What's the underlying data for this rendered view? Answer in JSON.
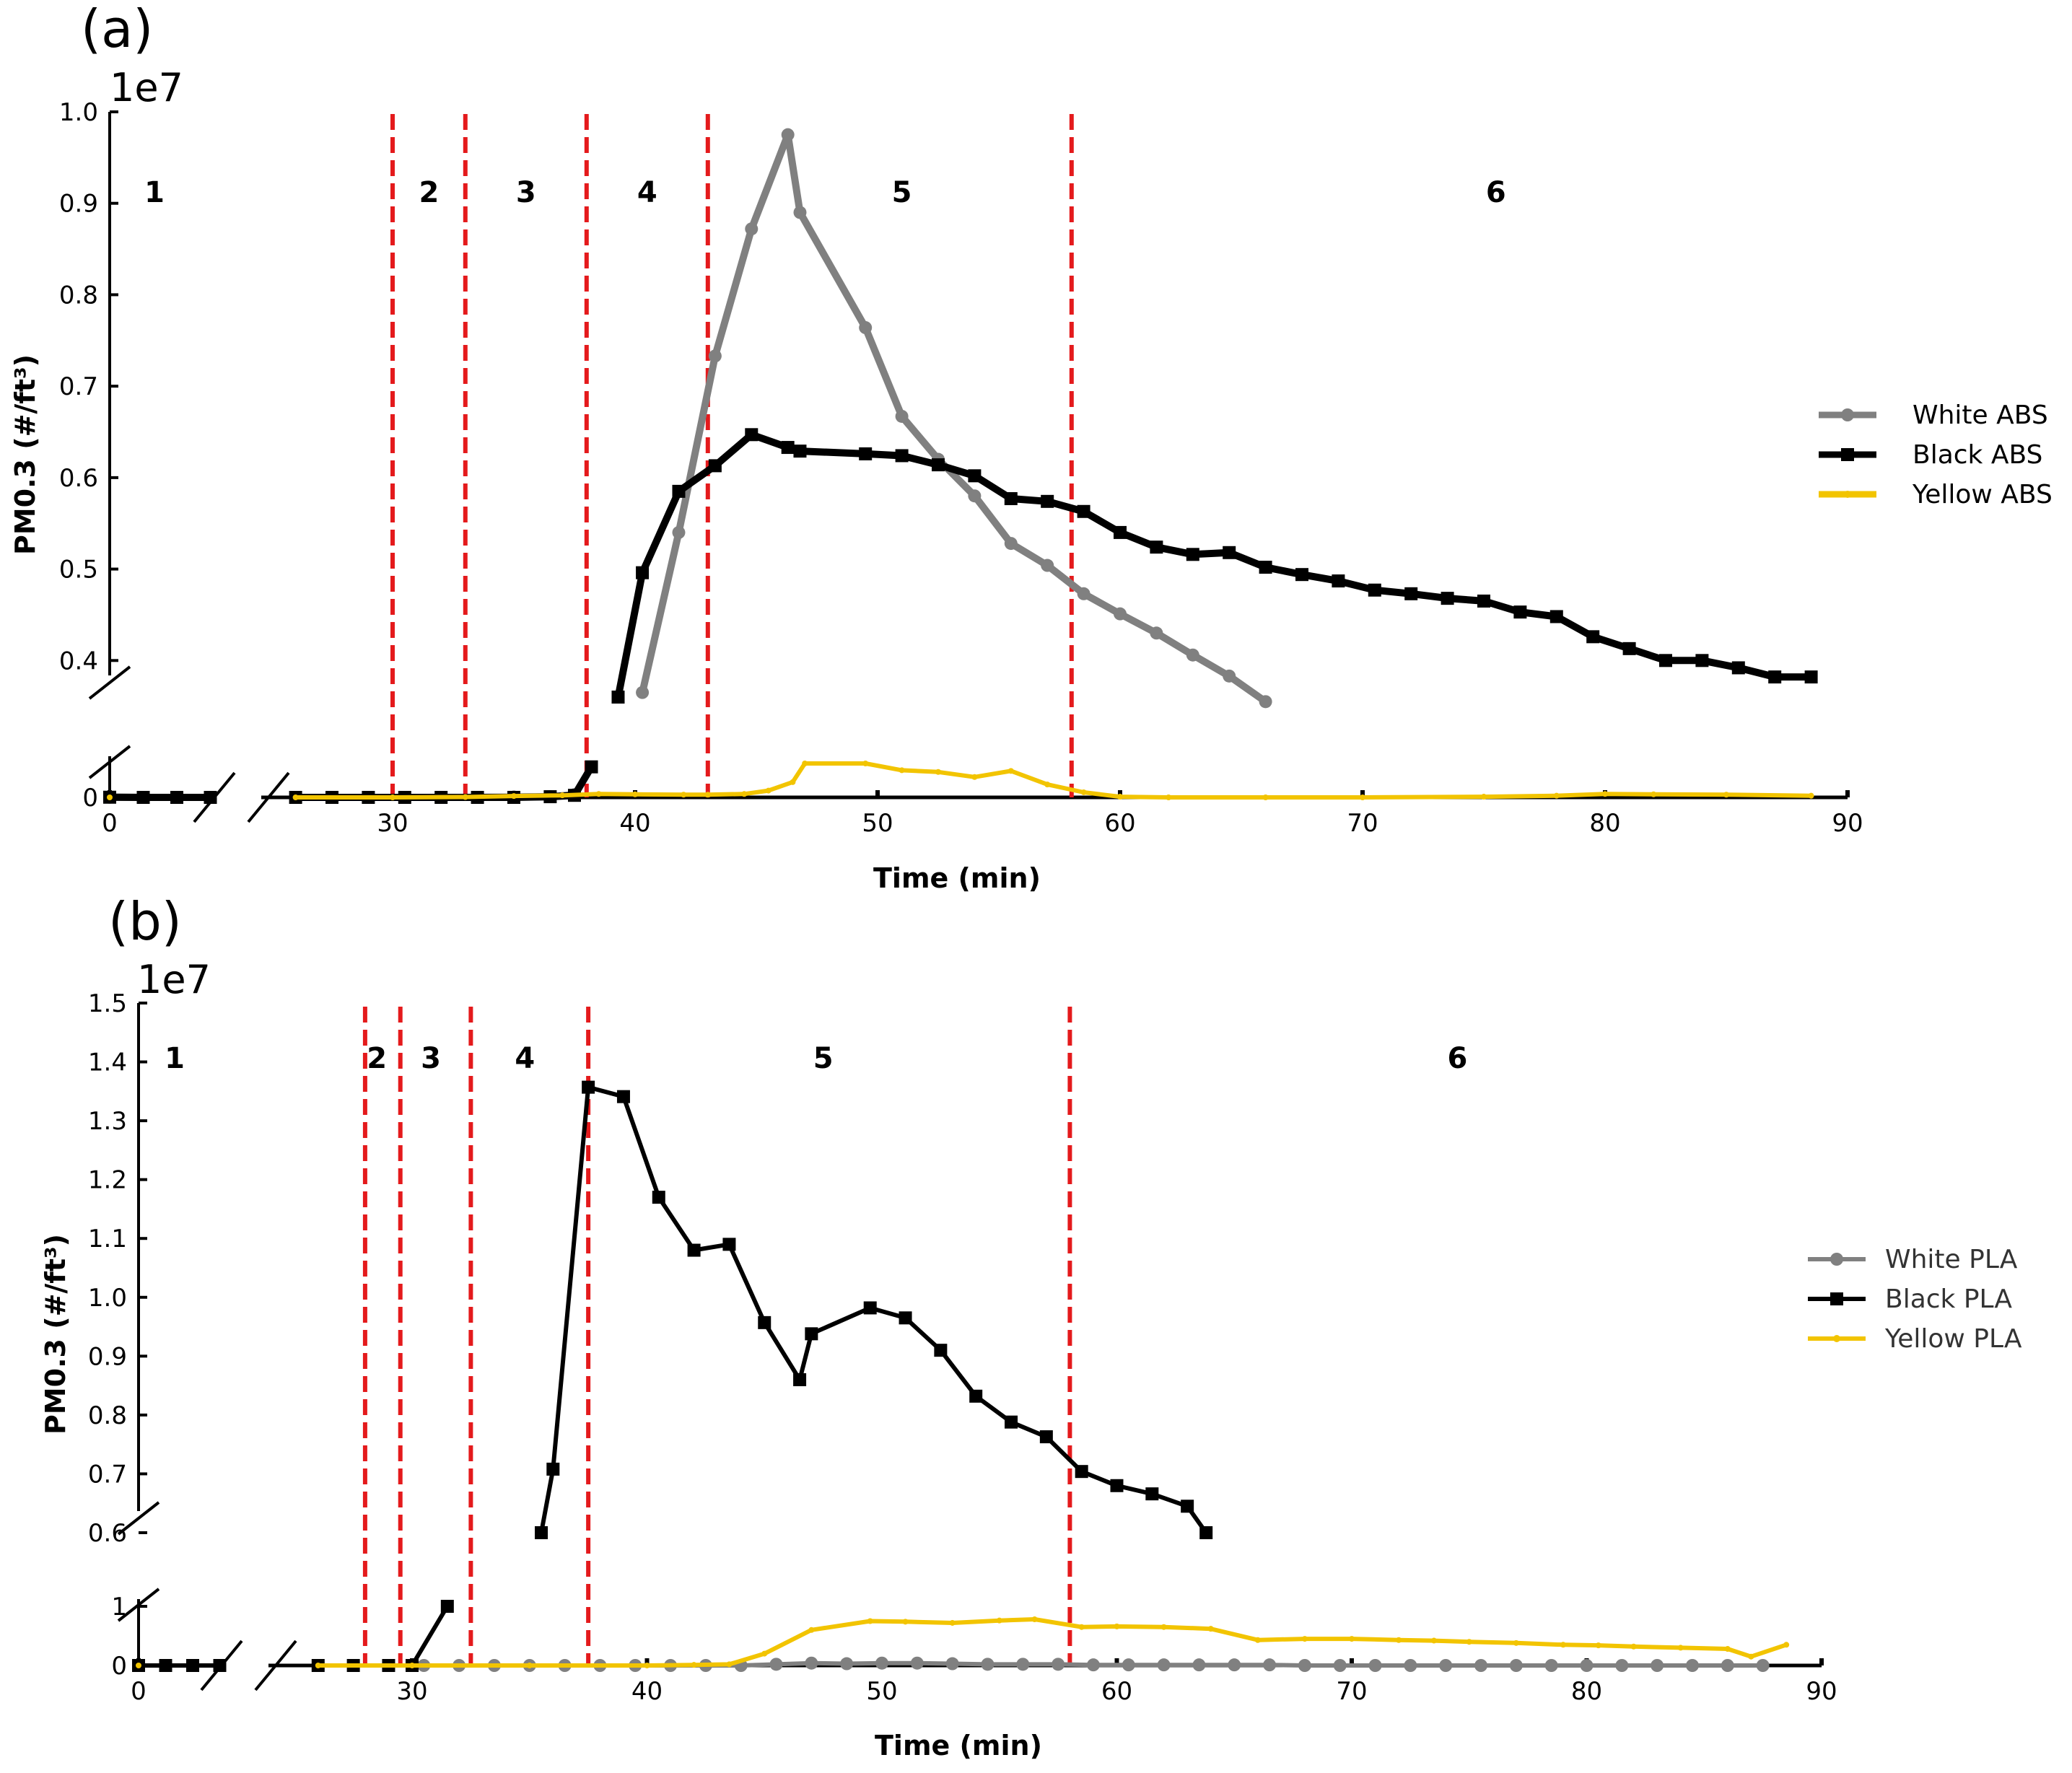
{
  "chart_data": [
    {
      "type": "line",
      "panel_label": "(a)",
      "scale_label": "1e7",
      "xlabel": "Time (min)",
      "ylabel": "PM0.3 (#/ft³)",
      "xlim": [
        0,
        90
      ],
      "x_ticks": [
        "0",
        "30",
        "40",
        "50",
        "60",
        "70",
        "80",
        "90"
      ],
      "y_upper_range": [
        0.36,
        1.0
      ],
      "y_upper_ticks": [
        "0.4",
        "0.5",
        "0.6",
        "0.7",
        "0.8",
        "0.9",
        "1.0"
      ],
      "y_lower_ticks": [
        "0"
      ],
      "phase_boundaries": [
        30,
        33,
        38,
        43,
        58
      ],
      "phase_labels": [
        {
          "text": "1",
          "x": 2
        },
        {
          "text": "2",
          "x": 31.5
        },
        {
          "text": "3",
          "x": 35.5
        },
        {
          "text": "4",
          "x": 40.5
        },
        {
          "text": "5",
          "x": 51
        },
        {
          "text": "6",
          "x": 75.5
        }
      ],
      "series": [
        {
          "name": "White ABS",
          "color": "#808080",
          "marker": "circle",
          "upper": [
            [
              40.3,
              0.365
            ],
            [
              41.8,
              0.54
            ],
            [
              43.3,
              0.733
            ],
            [
              44.8,
              0.872
            ],
            [
              46.3,
              0.975
            ],
            [
              46.8,
              0.89
            ],
            [
              49.5,
              0.764
            ],
            [
              51,
              0.667
            ],
            [
              52.5,
              0.62
            ],
            [
              54,
              0.58
            ],
            [
              55.5,
              0.528
            ],
            [
              57,
              0.504
            ],
            [
              58.5,
              0.473
            ],
            [
              60,
              0.451
            ],
            [
              61.5,
              0.43
            ],
            [
              63,
              0.406
            ],
            [
              64.5,
              0.383
            ],
            [
              66,
              0.355
            ]
          ],
          "lower": [
            [
              0,
              0.005
            ],
            [
              1.5,
              0.0
            ],
            [
              3,
              0.0
            ],
            [
              4.5,
              0.0
            ],
            [
              26,
              0.0
            ],
            [
              27.5,
              0.0
            ],
            [
              29,
              0.0
            ],
            [
              30.5,
              0.0
            ],
            [
              32,
              0.0
            ],
            [
              33.5,
              0.0
            ],
            [
              35,
              0.01
            ],
            [
              36.5,
              0.02
            ],
            [
              37.5,
              0.08
            ]
          ]
        },
        {
          "name": "Black ABS",
          "color": "#000000",
          "marker": "square",
          "upper": [
            [
              39.3,
              0.36
            ],
            [
              40.3,
              0.496
            ],
            [
              41.8,
              0.585
            ],
            [
              43.3,
              0.613
            ],
            [
              44.8,
              0.647
            ],
            [
              46.3,
              0.633
            ],
            [
              46.8,
              0.629
            ],
            [
              49.5,
              0.626
            ],
            [
              51,
              0.624
            ],
            [
              52.5,
              0.614
            ],
            [
              54,
              0.602
            ],
            [
              55.5,
              0.577
            ],
            [
              57,
              0.574
            ],
            [
              58.5,
              0.563
            ],
            [
              60,
              0.54
            ],
            [
              61.5,
              0.524
            ],
            [
              63,
              0.516
            ],
            [
              64.5,
              0.518
            ],
            [
              66,
              0.502
            ],
            [
              67.5,
              0.494
            ],
            [
              69,
              0.487
            ],
            [
              70.5,
              0.477
            ],
            [
              72,
              0.473
            ],
            [
              73.5,
              0.468
            ],
            [
              75,
              0.465
            ],
            [
              76.5,
              0.453
            ],
            [
              78,
              0.448
            ],
            [
              79.5,
              0.426
            ],
            [
              81,
              0.413
            ],
            [
              82.5,
              0.4
            ],
            [
              84,
              0.4
            ],
            [
              85.5,
              0.392
            ],
            [
              87,
              0.382
            ],
            [
              88.5,
              0.382
            ]
          ],
          "lower": [
            [
              0,
              0.005
            ],
            [
              1.5,
              0.0
            ],
            [
              3,
              0.0
            ],
            [
              4.5,
              0.0
            ],
            [
              26,
              0.0
            ],
            [
              27.5,
              0.0
            ],
            [
              29,
              0.0
            ],
            [
              30.5,
              0.0
            ],
            [
              32,
              0.0
            ],
            [
              33.5,
              0.0
            ],
            [
              35,
              0.0
            ],
            [
              36.5,
              0.02
            ],
            [
              37.5,
              0.06
            ],
            [
              38.2,
              0.9
            ]
          ]
        },
        {
          "name": "Yellow ABS",
          "color": "#f2c400",
          "marker": "dot",
          "lower": [
            [
              0,
              0.0
            ],
            [
              26,
              0.0
            ],
            [
              30,
              0.0
            ],
            [
              33,
              0.01
            ],
            [
              35,
              0.04
            ],
            [
              37,
              0.06
            ],
            [
              38.5,
              0.1
            ],
            [
              40,
              0.09
            ],
            [
              42,
              0.08
            ],
            [
              43,
              0.08
            ],
            [
              44.5,
              0.1
            ],
            [
              45.5,
              0.2
            ],
            [
              46.5,
              0.45
            ],
            [
              47,
              1.0
            ],
            [
              49.5,
              1.0
            ],
            [
              51,
              0.8
            ],
            [
              52.5,
              0.75
            ],
            [
              54,
              0.6
            ],
            [
              55.5,
              0.78
            ],
            [
              57,
              0.38
            ],
            [
              58.5,
              0.15
            ],
            [
              60,
              0.02
            ],
            [
              62,
              0.0
            ],
            [
              66,
              0.0
            ],
            [
              70,
              0.0
            ],
            [
              75,
              0.02
            ],
            [
              78,
              0.05
            ],
            [
              80,
              0.1
            ],
            [
              82,
              0.09
            ],
            [
              85,
              0.08
            ],
            [
              88.5,
              0.05
            ]
          ]
        }
      ],
      "legend": [
        "White ABS",
        "Black ABS",
        "Yellow ABS"
      ]
    },
    {
      "type": "line",
      "panel_label": "(b)",
      "scale_label": "1e7",
      "xlabel": "Time (min)",
      "ylabel": "PM0.3 (#/ft³)",
      "xlim": [
        0,
        90
      ],
      "x_ticks": [
        "0",
        "30",
        "40",
        "50",
        "60",
        "70",
        "80",
        "90"
      ],
      "y_upper_range": [
        0.6,
        1.5
      ],
      "y_upper_ticks": [
        "0.6",
        "0.7",
        "0.8",
        "0.9",
        "1.0",
        "1.1",
        "1.2",
        "1.3",
        "1.4",
        "1.5"
      ],
      "y_lower_ticks": [
        "0",
        "1"
      ],
      "phase_boundaries": [
        28,
        29.5,
        32.5,
        37.5,
        58
      ],
      "phase_labels": [
        {
          "text": "1",
          "x": 2
        },
        {
          "text": "2",
          "x": 28.5
        },
        {
          "text": "3",
          "x": 30.8
        },
        {
          "text": "4",
          "x": 34.8
        },
        {
          "text": "5",
          "x": 47.5
        },
        {
          "text": "6",
          "x": 74.5
        }
      ],
      "series": [
        {
          "name": "White PLA",
          "color": "#808080",
          "marker": "circle",
          "lower": [
            [
              0,
              0.0
            ],
            [
              1.5,
              0.0
            ],
            [
              3,
              0.0
            ],
            [
              4.5,
              0.0
            ],
            [
              26,
              0.0
            ],
            [
              27.5,
              0.0
            ],
            [
              29,
              0.0
            ],
            [
              30.5,
              0.0
            ],
            [
              32,
              0.0
            ],
            [
              33.5,
              0.0
            ],
            [
              35,
              0.0
            ],
            [
              36.5,
              0.0
            ],
            [
              38,
              0.0
            ],
            [
              39.5,
              0.0
            ],
            [
              41,
              0.0
            ],
            [
              42.5,
              0.0
            ],
            [
              44,
              0.0
            ],
            [
              45.5,
              0.02
            ],
            [
              47,
              0.04
            ],
            [
              48.5,
              0.03
            ],
            [
              50,
              0.04
            ],
            [
              51.5,
              0.04
            ],
            [
              53,
              0.03
            ],
            [
              54.5,
              0.02
            ],
            [
              56,
              0.02
            ],
            [
              57.5,
              0.02
            ],
            [
              59,
              0.01
            ],
            [
              60.5,
              0.01
            ],
            [
              62,
              0.01
            ],
            [
              63.5,
              0.01
            ],
            [
              65,
              0.01
            ],
            [
              66.5,
              0.01
            ],
            [
              68,
              0.0
            ],
            [
              69.5,
              0.0
            ],
            [
              71,
              0.0
            ],
            [
              72.5,
              0.0
            ],
            [
              74,
              0.0
            ],
            [
              75.5,
              0.0
            ],
            [
              77,
              0.0
            ],
            [
              78.5,
              0.0
            ],
            [
              80,
              0.0
            ],
            [
              81.5,
              0.0
            ],
            [
              83,
              0.0
            ],
            [
              84.5,
              0.0
            ],
            [
              86,
              0.0
            ],
            [
              87.5,
              0.0
            ]
          ]
        },
        {
          "name": "Black PLA",
          "color": "#000000",
          "marker": "square",
          "upper": [
            [
              35.5,
              0.6
            ],
            [
              36,
              0.708
            ],
            [
              37.5,
              1.357
            ],
            [
              39,
              1.341
            ],
            [
              40.5,
              1.17
            ],
            [
              42,
              1.08
            ],
            [
              43.5,
              1.09
            ],
            [
              45,
              0.957
            ],
            [
              46.5,
              0.86
            ],
            [
              47,
              0.938
            ],
            [
              49.5,
              0.982
            ],
            [
              51,
              0.965
            ],
            [
              52.5,
              0.91
            ],
            [
              54,
              0.832
            ],
            [
              55.5,
              0.788
            ],
            [
              57,
              0.763
            ],
            [
              58.5,
              0.704
            ],
            [
              60,
              0.68
            ],
            [
              61.5,
              0.666
            ],
            [
              63,
              0.645
            ],
            [
              63.8,
              0.6
            ]
          ],
          "lower": [
            [
              0,
              0.0
            ],
            [
              1.5,
              0.0
            ],
            [
              3,
              0.0
            ],
            [
              4.5,
              0.0
            ],
            [
              26,
              0.0
            ],
            [
              27.5,
              0.0
            ],
            [
              29,
              0.0
            ],
            [
              30,
              0.0
            ],
            [
              31.5,
              1.0
            ]
          ]
        },
        {
          "name": "Yellow PLA",
          "color": "#f2c400",
          "marker": "dot",
          "lower": [
            [
              0,
              0.0
            ],
            [
              26,
              0.0
            ],
            [
              30,
              0.0
            ],
            [
              35,
              0.0
            ],
            [
              40,
              0.0
            ],
            [
              42,
              0.01
            ],
            [
              43.5,
              0.02
            ],
            [
              45,
              0.2
            ],
            [
              47,
              0.6
            ],
            [
              49.5,
              0.75
            ],
            [
              51,
              0.74
            ],
            [
              53,
              0.72
            ],
            [
              55,
              0.76
            ],
            [
              56.5,
              0.78
            ],
            [
              58.5,
              0.65
            ],
            [
              60,
              0.66
            ],
            [
              62,
              0.65
            ],
            [
              64,
              0.62
            ],
            [
              66,
              0.43
            ],
            [
              68,
              0.45
            ],
            [
              70,
              0.45
            ],
            [
              72,
              0.43
            ],
            [
              73.5,
              0.42
            ],
            [
              75,
              0.4
            ],
            [
              77,
              0.38
            ],
            [
              79,
              0.35
            ],
            [
              80.5,
              0.34
            ],
            [
              82,
              0.32
            ],
            [
              84,
              0.3
            ],
            [
              86,
              0.28
            ],
            [
              87,
              0.15
            ],
            [
              88.5,
              0.35
            ]
          ]
        }
      ],
      "legend": [
        "White PLA",
        "Black PLA",
        "Yellow PLA"
      ]
    }
  ]
}
